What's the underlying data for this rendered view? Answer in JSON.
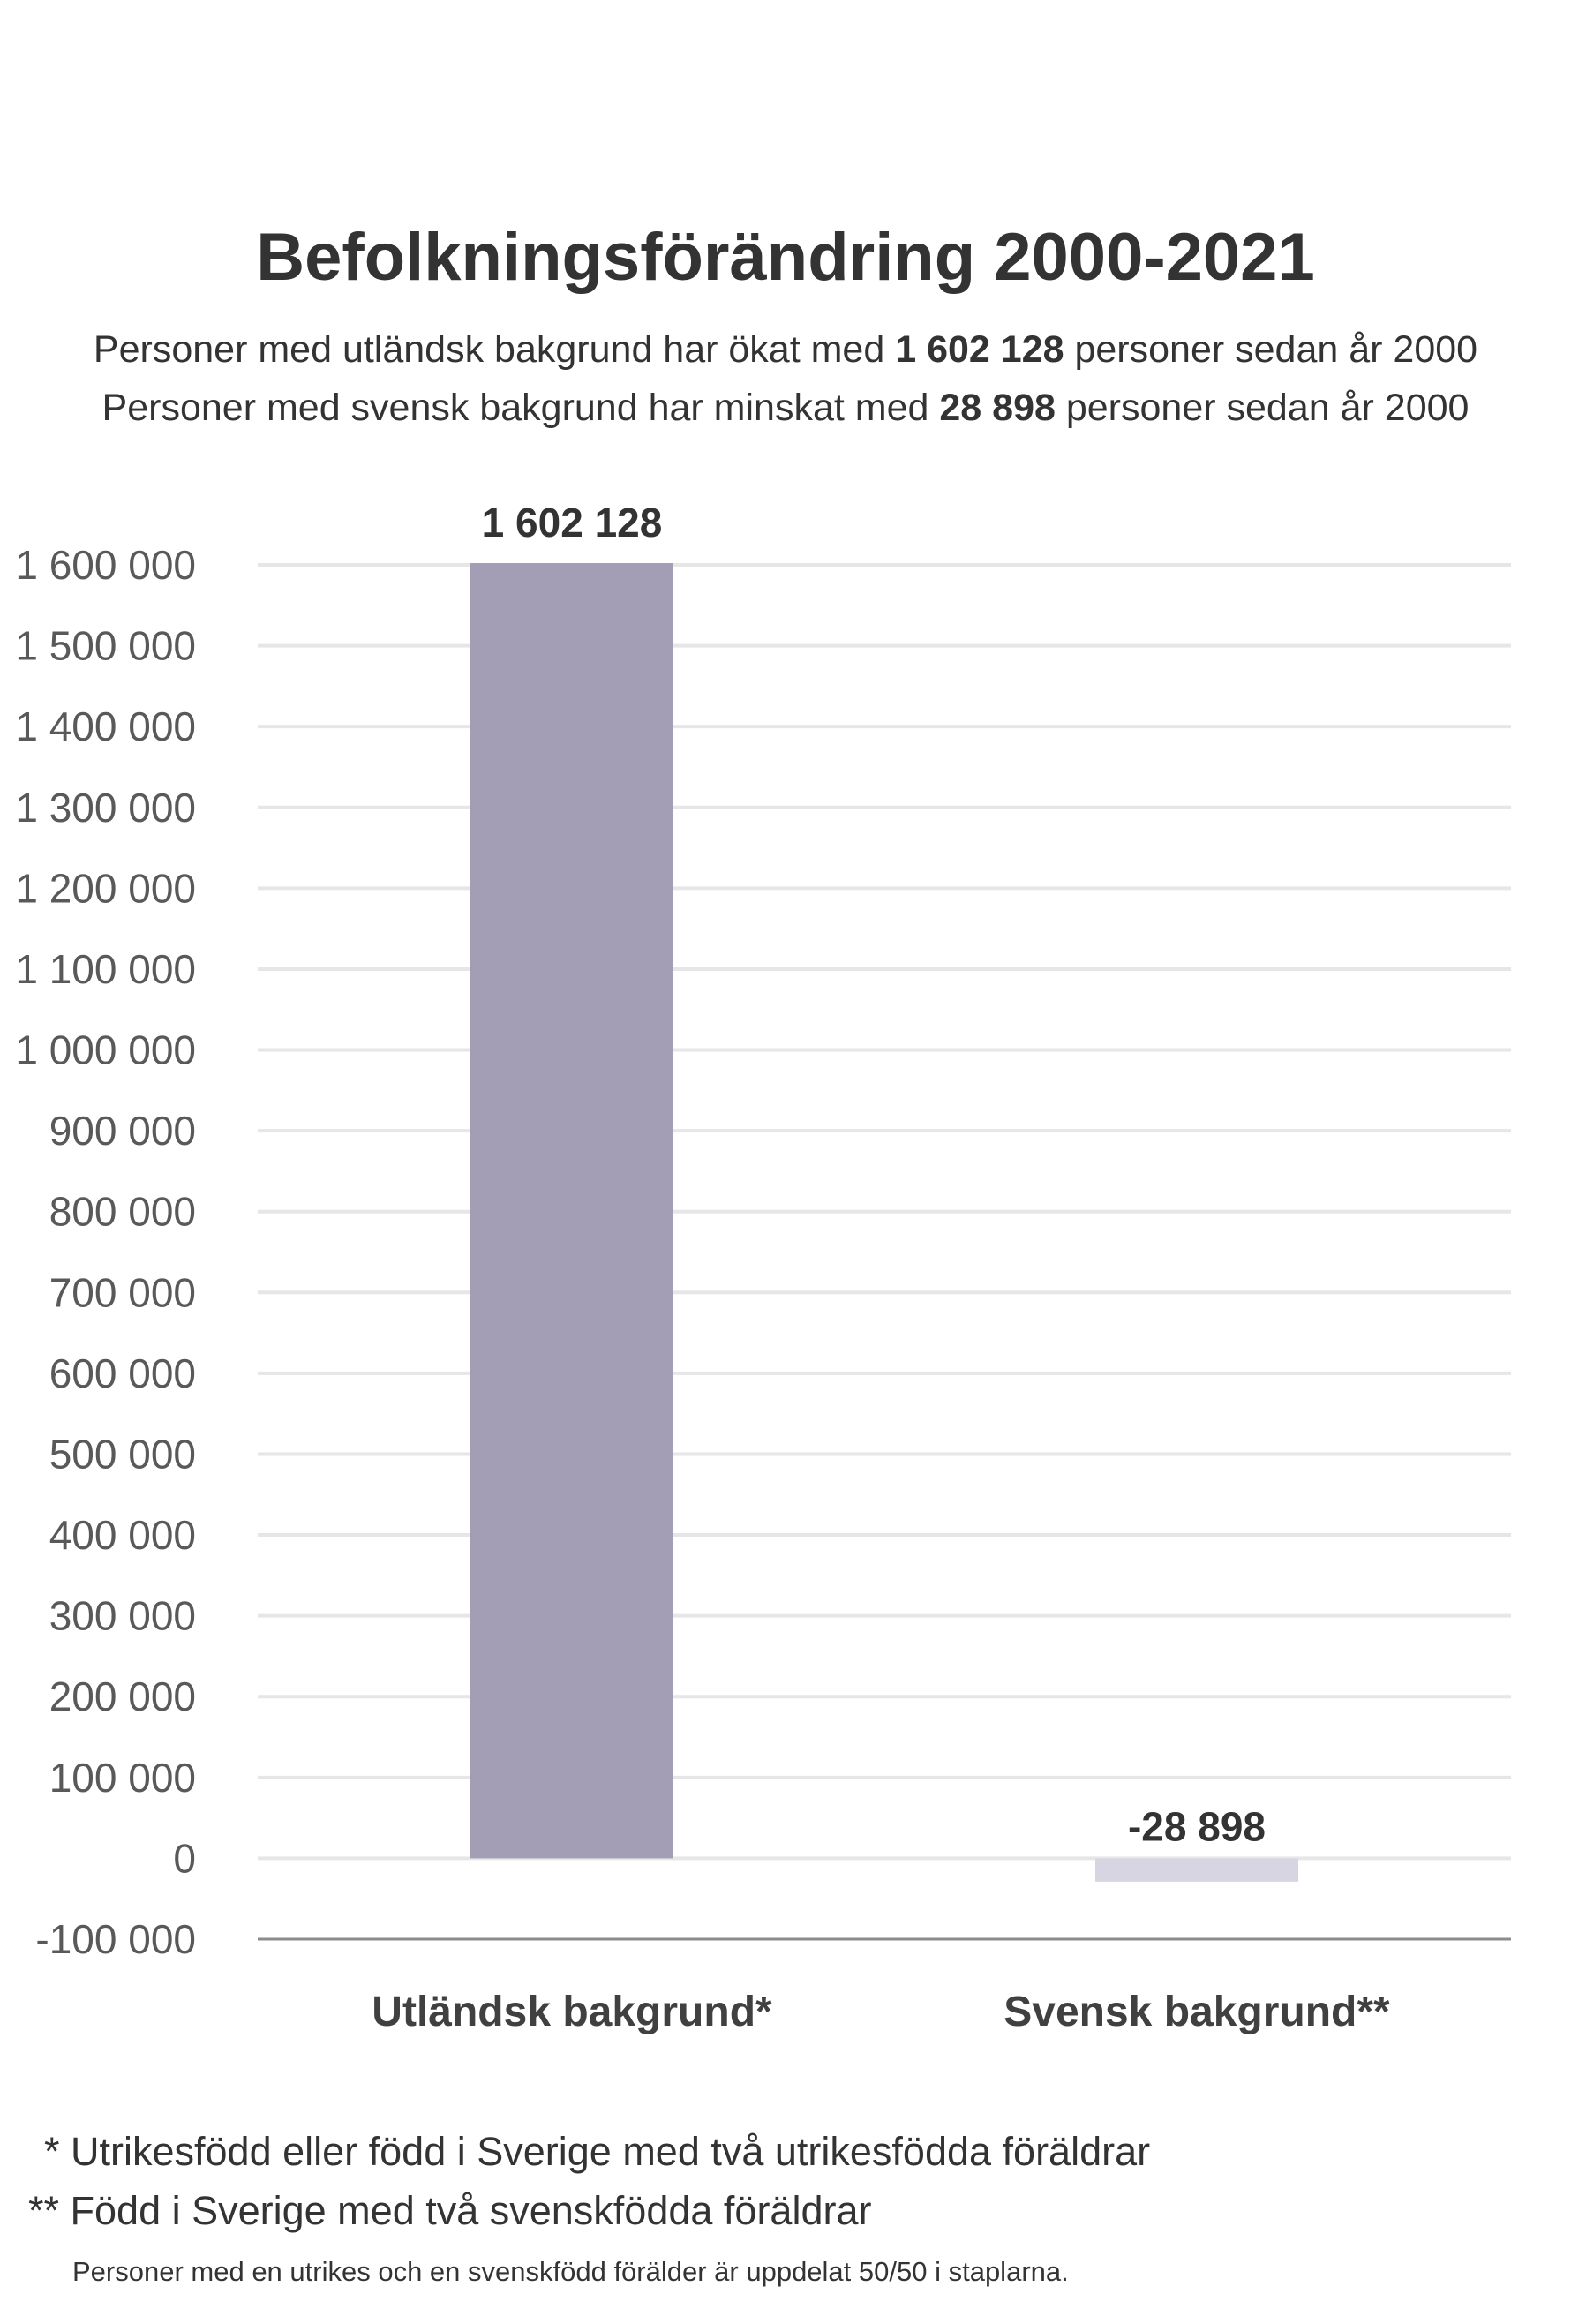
{
  "title": "Befolkningsförändring 2000-2021",
  "subtitle": {
    "line1": {
      "pre": "Personer med utländsk bakgrund har ökat med ",
      "bold": "1 602 128",
      "post": " personer sedan år 2000"
    },
    "line2": {
      "pre": "Personer med svensk bakgrund har minskat med ",
      "bold": "28 898",
      "post": " personer sedan år 2000"
    }
  },
  "chart_data": {
    "type": "bar",
    "categories": [
      "Utländsk bakgrund*",
      "Svensk bakgrund**"
    ],
    "values": [
      1602128,
      -28898
    ],
    "data_labels": [
      "1 602 128",
      "-28 898"
    ],
    "colors": [
      "#a39db6",
      "#d8d5e2"
    ],
    "ylim": [
      -100000,
      1600000
    ],
    "yticks": [
      -100000,
      0,
      100000,
      200000,
      300000,
      400000,
      500000,
      600000,
      700000,
      800000,
      900000,
      1000000,
      1100000,
      1200000,
      1300000,
      1400000,
      1500000,
      1600000
    ],
    "ytick_labels": [
      "-100 000",
      "0",
      "100 000",
      "200 000",
      "300 000",
      "400 000",
      "500 000",
      "600 000",
      "700 000",
      "800 000",
      "900 000",
      "1 000 000",
      "1 100 000",
      "1 200 000",
      "1 300 000",
      "1 400 000",
      "1 500 000",
      "1 600 000"
    ],
    "grid": true,
    "legend": "none"
  },
  "footnotes": {
    "note1": "* Utrikesfödd eller född i Sverige med två utrikesfödda föräldrar",
    "note2": "** Född i Sverige med två svenskfödda föräldrar",
    "note3": "Personer med en utrikes och en svenskfödd förälder är uppdelat 50/50 i staplarna."
  }
}
